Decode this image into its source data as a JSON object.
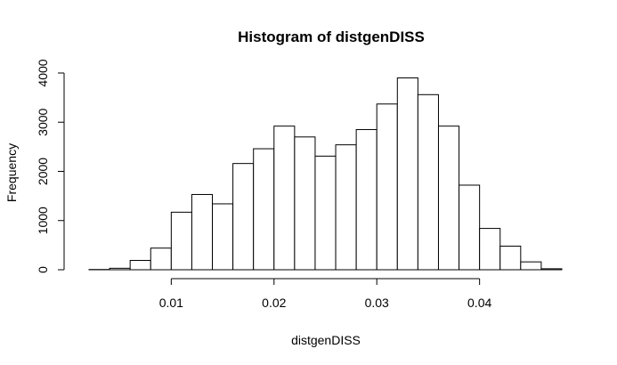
{
  "chart_data": {
    "type": "bar",
    "title": "Histogram of distgenDISS",
    "xlabel": "distgenDISS",
    "ylabel": "Frequency",
    "bin_edges": [
      0.002,
      0.004,
      0.006,
      0.008,
      0.01,
      0.012,
      0.014,
      0.016,
      0.018,
      0.02,
      0.022,
      0.024,
      0.026,
      0.028,
      0.03,
      0.032,
      0.034,
      0.036,
      0.038,
      0.04,
      0.042,
      0.044,
      0.046,
      0.048
    ],
    "values": [
      5,
      30,
      190,
      440,
      1170,
      1530,
      1340,
      2160,
      2460,
      2920,
      2700,
      2310,
      2540,
      2850,
      3370,
      3900,
      3560,
      2920,
      1720,
      840,
      480,
      160,
      20
    ],
    "x_ticks": [
      0.01,
      0.02,
      0.03,
      0.04
    ],
    "x_tick_labels": [
      "0.01",
      "0.02",
      "0.03",
      "0.04"
    ],
    "y_ticks": [
      0,
      1000,
      2000,
      3000,
      4000
    ],
    "y_tick_labels": [
      "0",
      "1000",
      "2000",
      "3000",
      "4000"
    ],
    "xlim": [
      0.002,
      0.048
    ],
    "ylim": [
      0,
      4000
    ],
    "grid": false,
    "legend": "none"
  }
}
